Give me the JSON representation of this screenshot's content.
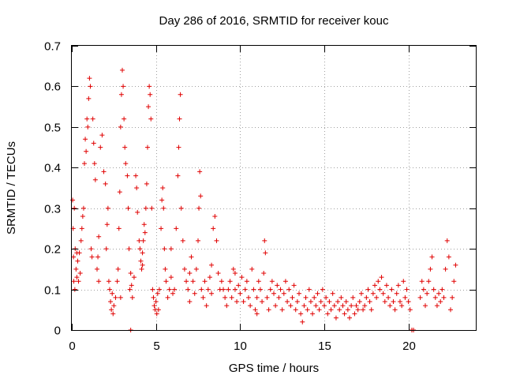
{
  "chart_data": {
    "type": "scatter",
    "title": "Day 286 of 2016, SRMTID for receiver kouc",
    "xlabel": "GPS time / hours",
    "ylabel": "SRMTID / TECUs",
    "xlim": [
      0,
      24
    ],
    "ylim": [
      0,
      0.7
    ],
    "xticks": [
      0,
      5,
      10,
      15,
      20
    ],
    "xtick_labels": [
      "0",
      "5",
      "10",
      "15",
      "20"
    ],
    "yticks": [
      0,
      0.1,
      0.2,
      0.3,
      0.4,
      0.5,
      0.6,
      0.7
    ],
    "ytick_labels": [
      "0",
      "0.1",
      "0.2",
      "0.3",
      "0.4",
      "0.5",
      "0.6",
      "0.7"
    ],
    "grid": true,
    "marker": "+",
    "color": "#e00000",
    "series": [
      {
        "name": "SRMTID",
        "points": [
          [
            0.05,
            0.32
          ],
          [
            0.08,
            0.25
          ],
          [
            0.1,
            0.18
          ],
          [
            0.12,
            0.12
          ],
          [
            0.15,
            0.3
          ],
          [
            0.18,
            0.1
          ],
          [
            0.2,
            0.2
          ],
          [
            0.25,
            0.15
          ],
          [
            0.3,
            0.13
          ],
          [
            0.35,
            0.17
          ],
          [
            0.4,
            0.12
          ],
          [
            0.45,
            0.19
          ],
          [
            0.5,
            0.14
          ],
          [
            0.55,
            0.22
          ],
          [
            0.6,
            0.25
          ],
          [
            0.65,
            0.28
          ],
          [
            0.7,
            0.3
          ],
          [
            0.75,
            0.41
          ],
          [
            0.8,
            0.47
          ],
          [
            0.85,
            0.44
          ],
          [
            0.9,
            0.52
          ],
          [
            0.95,
            0.5
          ],
          [
            1.0,
            0.57
          ],
          [
            1.05,
            0.62
          ],
          [
            1.1,
            0.6
          ],
          [
            1.15,
            0.2
          ],
          [
            1.2,
            0.18
          ],
          [
            1.25,
            0.52
          ],
          [
            1.3,
            0.46
          ],
          [
            1.35,
            0.41
          ],
          [
            1.4,
            0.37
          ],
          [
            1.5,
            0.15
          ],
          [
            1.55,
            0.18
          ],
          [
            1.6,
            0.23
          ],
          [
            1.7,
            0.45
          ],
          [
            1.8,
            0.48
          ],
          [
            1.9,
            0.39
          ],
          [
            2.0,
            0.36
          ],
          [
            2.05,
            0.2
          ],
          [
            2.1,
            0.26
          ],
          [
            2.15,
            0.3
          ],
          [
            2.2,
            0.12
          ],
          [
            2.25,
            0.1
          ],
          [
            2.3,
            0.07
          ],
          [
            2.35,
            0.05
          ],
          [
            2.4,
            0.09
          ],
          [
            2.45,
            0.04
          ],
          [
            2.5,
            0.06
          ],
          [
            2.6,
            0.08
          ],
          [
            2.7,
            0.12
          ],
          [
            2.75,
            0.15
          ],
          [
            2.8,
            0.25
          ],
          [
            2.85,
            0.34
          ],
          [
            2.9,
            0.5
          ],
          [
            2.95,
            0.58
          ],
          [
            3.0,
            0.64
          ],
          [
            3.05,
            0.6
          ],
          [
            3.1,
            0.52
          ],
          [
            3.15,
            0.45
          ],
          [
            3.2,
            0.41
          ],
          [
            3.3,
            0.38
          ],
          [
            3.35,
            0.3
          ],
          [
            3.4,
            0.2
          ],
          [
            3.45,
            0.1
          ],
          [
            3.5,
            0.14
          ],
          [
            3.55,
            0.11
          ],
          [
            3.6,
            0.08
          ],
          [
            3.7,
            0.13
          ],
          [
            3.8,
            0.38
          ],
          [
            3.85,
            0.35
          ],
          [
            3.9,
            0.29
          ],
          [
            4.0,
            0.22
          ],
          [
            4.05,
            0.2
          ],
          [
            4.1,
            0.17
          ],
          [
            4.15,
            0.15
          ],
          [
            4.2,
            0.19
          ],
          [
            4.25,
            0.22
          ],
          [
            4.3,
            0.26
          ],
          [
            4.35,
            0.24
          ],
          [
            4.4,
            0.3
          ],
          [
            4.45,
            0.36
          ],
          [
            4.5,
            0.45
          ],
          [
            4.55,
            0.55
          ],
          [
            4.6,
            0.6
          ],
          [
            4.65,
            0.58
          ],
          [
            4.7,
            0.52
          ],
          [
            4.75,
            0.3
          ],
          [
            4.8,
            0.1
          ],
          [
            4.85,
            0.08
          ],
          [
            4.9,
            0.06
          ],
          [
            4.95,
            0.05
          ],
          [
            5.0,
            0.07
          ],
          [
            5.05,
            0.04
          ],
          [
            5.1,
            0.09
          ],
          [
            5.15,
            0.05
          ],
          [
            5.2,
            0.1
          ],
          [
            5.3,
            0.25
          ],
          [
            5.35,
            0.32
          ],
          [
            5.4,
            0.35
          ],
          [
            5.45,
            0.3
          ],
          [
            5.5,
            0.2
          ],
          [
            5.55,
            0.15
          ],
          [
            5.6,
            0.12
          ],
          [
            5.7,
            0.08
          ],
          [
            5.8,
            0.1
          ],
          [
            5.9,
            0.13
          ],
          [
            6.0,
            0.09
          ],
          [
            6.1,
            0.1
          ],
          [
            6.2,
            0.25
          ],
          [
            6.3,
            0.38
          ],
          [
            6.35,
            0.45
          ],
          [
            6.4,
            0.52
          ],
          [
            6.45,
            0.58
          ],
          [
            6.5,
            0.3
          ],
          [
            6.6,
            0.22
          ],
          [
            6.7,
            0.15
          ],
          [
            6.8,
            0.12
          ],
          [
            6.9,
            0.1
          ],
          [
            7.0,
            0.14
          ],
          [
            7.1,
            0.18
          ],
          [
            7.2,
            0.12
          ],
          [
            7.3,
            0.09
          ],
          [
            7.4,
            0.15
          ],
          [
            7.5,
            0.22
          ],
          [
            7.55,
            0.3
          ],
          [
            7.6,
            0.39
          ],
          [
            7.65,
            0.33
          ],
          [
            7.7,
            0.1
          ],
          [
            7.8,
            0.08
          ],
          [
            7.9,
            0.12
          ],
          [
            8.0,
            0.06
          ],
          [
            8.1,
            0.1
          ],
          [
            8.2,
            0.13
          ],
          [
            8.3,
            0.16
          ],
          [
            8.4,
            0.25
          ],
          [
            8.5,
            0.28
          ],
          [
            8.6,
            0.22
          ],
          [
            8.7,
            0.14
          ],
          [
            8.8,
            0.1
          ],
          [
            8.9,
            0.12
          ],
          [
            9.0,
            0.1
          ],
          [
            9.1,
            0.08
          ],
          [
            9.2,
            0.06
          ],
          [
            9.3,
            0.1
          ],
          [
            9.4,
            0.12
          ],
          [
            9.5,
            0.08
          ],
          [
            9.6,
            0.15
          ],
          [
            9.7,
            0.1
          ],
          [
            9.8,
            0.07
          ],
          [
            9.9,
            0.11
          ],
          [
            10.0,
            0.09
          ],
          [
            10.1,
            0.13
          ],
          [
            10.2,
            0.07
          ],
          [
            10.3,
            0.1
          ],
          [
            10.4,
            0.12
          ],
          [
            10.5,
            0.08
          ],
          [
            10.6,
            0.06
          ],
          [
            10.7,
            0.15
          ],
          [
            10.8,
            0.1
          ],
          [
            10.9,
            0.05
          ],
          [
            11.0,
            0.08
          ],
          [
            11.1,
            0.12
          ],
          [
            11.2,
            0.1
          ],
          [
            11.3,
            0.07
          ],
          [
            11.4,
            0.14
          ],
          [
            11.45,
            0.22
          ],
          [
            11.5,
            0.19
          ],
          [
            11.6,
            0.08
          ],
          [
            11.7,
            0.05
          ],
          [
            11.8,
            0.1
          ],
          [
            11.9,
            0.12
          ],
          [
            12.0,
            0.09
          ],
          [
            12.1,
            0.06
          ],
          [
            12.2,
            0.11
          ],
          [
            12.3,
            0.08
          ],
          [
            12.4,
            0.1
          ],
          [
            12.5,
            0.05
          ],
          [
            12.6,
            0.09
          ],
          [
            12.7,
            0.12
          ],
          [
            12.8,
            0.07
          ],
          [
            12.9,
            0.1
          ],
          [
            13.0,
            0.06
          ],
          [
            13.1,
            0.08
          ],
          [
            13.2,
            0.11
          ],
          [
            13.3,
            0.05
          ],
          [
            13.4,
            0.07
          ],
          [
            13.5,
            0.09
          ],
          [
            13.6,
            0.04
          ],
          [
            13.7,
            0.02
          ],
          [
            13.8,
            0.06
          ],
          [
            13.9,
            0.08
          ],
          [
            14.0,
            0.05
          ],
          [
            14.1,
            0.1
          ],
          [
            14.2,
            0.07
          ],
          [
            14.3,
            0.04
          ],
          [
            14.4,
            0.08
          ],
          [
            14.5,
            0.06
          ],
          [
            14.6,
            0.09
          ],
          [
            14.7,
            0.05
          ],
          [
            14.8,
            0.07
          ],
          [
            14.9,
            0.1
          ],
          [
            15.0,
            0.06
          ],
          [
            15.1,
            0.08
          ],
          [
            15.2,
            0.04
          ],
          [
            15.3,
            0.07
          ],
          [
            15.4,
            0.05
          ],
          [
            15.5,
            0.09
          ],
          [
            15.6,
            0.06
          ],
          [
            15.7,
            0.03
          ],
          [
            15.8,
            0.07
          ],
          [
            15.9,
            0.05
          ],
          [
            16.0,
            0.08
          ],
          [
            16.1,
            0.06
          ],
          [
            16.2,
            0.04
          ],
          [
            16.3,
            0.07
          ],
          [
            16.4,
            0.05
          ],
          [
            16.5,
            0.03
          ],
          [
            16.6,
            0.06
          ],
          [
            16.7,
            0.08
          ],
          [
            16.8,
            0.04
          ],
          [
            16.9,
            0.06
          ],
          [
            17.0,
            0.05
          ],
          [
            17.1,
            0.07
          ],
          [
            17.2,
            0.09
          ],
          [
            17.3,
            0.05
          ],
          [
            17.4,
            0.06
          ],
          [
            17.5,
            0.08
          ],
          [
            17.6,
            0.1
          ],
          [
            17.7,
            0.07
          ],
          [
            17.8,
            0.05
          ],
          [
            17.9,
            0.09
          ],
          [
            18.0,
            0.11
          ],
          [
            18.1,
            0.08
          ],
          [
            18.2,
            0.12
          ],
          [
            18.3,
            0.1
          ],
          [
            18.4,
            0.13
          ],
          [
            18.5,
            0.09
          ],
          [
            18.6,
            0.07
          ],
          [
            18.7,
            0.11
          ],
          [
            18.8,
            0.08
          ],
          [
            18.9,
            0.06
          ],
          [
            19.0,
            0.1
          ],
          [
            19.1,
            0.07
          ],
          [
            19.2,
            0.05
          ],
          [
            19.3,
            0.09
          ],
          [
            19.4,
            0.11
          ],
          [
            19.5,
            0.07
          ],
          [
            19.6,
            0.06
          ],
          [
            19.7,
            0.12
          ],
          [
            19.8,
            0.08
          ],
          [
            19.9,
            0.1
          ],
          [
            20.0,
            0.07
          ],
          [
            20.1,
            0.05
          ],
          [
            20.2,
            0.0
          ],
          [
            20.3,
            0.0
          ],
          [
            20.7,
            0.08
          ],
          [
            20.8,
            0.12
          ],
          [
            20.9,
            0.1
          ],
          [
            21.0,
            0.06
          ],
          [
            21.1,
            0.09
          ],
          [
            21.2,
            0.12
          ],
          [
            21.3,
            0.15
          ],
          [
            21.4,
            0.18
          ],
          [
            21.5,
            0.1
          ],
          [
            21.6,
            0.08
          ],
          [
            21.7,
            0.06
          ],
          [
            21.8,
            0.09
          ],
          [
            21.9,
            0.07
          ],
          [
            22.0,
            0.1
          ],
          [
            22.1,
            0.08
          ],
          [
            22.2,
            0.15
          ],
          [
            22.3,
            0.22
          ],
          [
            22.4,
            0.18
          ],
          [
            22.5,
            0.05
          ],
          [
            22.6,
            0.08
          ],
          [
            22.7,
            0.12
          ],
          [
            22.8,
            0.16
          ],
          [
            3.5,
            0.0
          ],
          [
            0.3,
            0.19
          ],
          [
            1.6,
            0.12
          ],
          [
            2.9,
            0.08
          ],
          [
            4.2,
            0.16
          ],
          [
            5.9,
            0.2
          ],
          [
            7.0,
            0.07
          ],
          [
            8.3,
            0.09
          ],
          [
            9.7,
            0.14
          ],
          [
            11.0,
            0.04
          ]
        ]
      }
    ]
  }
}
